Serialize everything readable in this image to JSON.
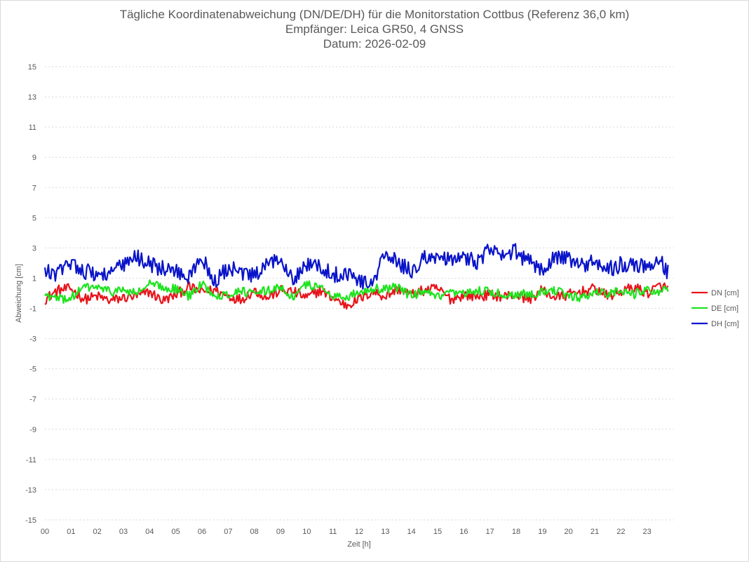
{
  "chart_data": {
    "type": "line",
    "title": "Tägliche Koordinatenabweichung (DN/DE/DH) für die Monitorstation Cottbus (Referenz 36,0 km)",
    "subtitle_1": "Empfänger: Leica GR50, 4 GNSS",
    "subtitle_2": "Datum: 2026-02-09",
    "xlabel": "Zeit [h]",
    "ylabel": "Abweichung [cm]",
    "xlim": [
      0,
      24
    ],
    "ylim": [
      -15,
      15
    ],
    "x_ticks": [
      "00",
      "01",
      "02",
      "03",
      "04",
      "05",
      "06",
      "07",
      "08",
      "09",
      "10",
      "11",
      "12",
      "13",
      "14",
      "15",
      "16",
      "17",
      "18",
      "19",
      "20",
      "21",
      "22",
      "23"
    ],
    "y_ticks": [
      "15",
      "13",
      "11",
      "9",
      "7",
      "5",
      "3",
      "1",
      "-1",
      "-3",
      "-5",
      "-7",
      "-9",
      "-11",
      "-13",
      "-15"
    ],
    "grid": true,
    "legend_position": "right",
    "x": [
      0.0,
      0.5,
      1.0,
      1.5,
      2.0,
      2.5,
      3.0,
      3.5,
      4.0,
      4.5,
      5.0,
      5.5,
      6.0,
      6.5,
      7.0,
      7.5,
      8.0,
      8.5,
      9.0,
      9.5,
      10.0,
      10.5,
      11.0,
      11.5,
      12.0,
      12.5,
      13.0,
      13.5,
      14.0,
      14.5,
      15.0,
      15.5,
      16.0,
      16.5,
      17.0,
      17.5,
      18.0,
      18.5,
      19.0,
      19.5,
      20.0,
      20.5,
      21.0,
      21.5,
      22.0,
      22.5,
      23.0,
      23.5,
      23.8
    ],
    "series": [
      {
        "name": "DN [cm]",
        "color": "#e8141b",
        "values": [
          -0.4,
          0.2,
          0.3,
          -0.4,
          -0.2,
          -0.5,
          -0.3,
          -0.2,
          0.1,
          -0.5,
          -0.1,
          0.4,
          0.1,
          0.2,
          -0.2,
          -0.4,
          0.2,
          -0.3,
          0.2,
          0.1,
          -0.3,
          0.2,
          -0.3,
          -0.8,
          -0.4,
          0.1,
          -0.2,
          0.3,
          -0.1,
          0.2,
          0.3,
          -0.4,
          -0.1,
          -0.2,
          -0.1,
          -0.2,
          -0.1,
          -0.4,
          0.2,
          -0.3,
          -0.1,
          0.1,
          0.3,
          -0.2,
          0.1,
          0.4,
          0.0,
          0.5,
          0.3
        ]
      },
      {
        "name": "DE [cm]",
        "color": "#1ee31e",
        "values": [
          -0.1,
          -0.4,
          -0.3,
          0.4,
          0.4,
          0.1,
          0.2,
          0.0,
          0.6,
          0.4,
          0.3,
          -0.2,
          0.6,
          -0.1,
          -0.1,
          0.2,
          -0.1,
          0.2,
          0.4,
          -0.3,
          0.6,
          0.4,
          -0.1,
          -0.3,
          0.1,
          0.3,
          0.3,
          0.4,
          -0.2,
          0.1,
          -0.3,
          0.0,
          -0.1,
          0.2,
          0.1,
          -0.1,
          -0.1,
          0.0,
          0.1,
          0.2,
          -0.2,
          -0.3,
          0.1,
          0.0,
          0.2,
          -0.1,
          0.3,
          0.1,
          0.2
        ]
      },
      {
        "name": "DH [cm]",
        "color": "#0a14c8",
        "values": [
          1.4,
          1.3,
          2.1,
          1.5,
          1.2,
          1.4,
          1.8,
          2.4,
          2.0,
          1.6,
          1.5,
          1.0,
          2.4,
          0.7,
          1.7,
          1.3,
          1.1,
          1.8,
          2.4,
          1.0,
          1.9,
          1.8,
          1.2,
          1.4,
          0.9,
          0.5,
          2.7,
          1.9,
          1.5,
          2.3,
          2.5,
          2.1,
          2.4,
          2.1,
          2.9,
          2.4,
          2.8,
          2.0,
          1.7,
          2.4,
          2.3,
          1.8,
          2.1,
          1.6,
          1.9,
          2.0,
          1.8,
          2.1,
          1.4
        ]
      }
    ]
  }
}
